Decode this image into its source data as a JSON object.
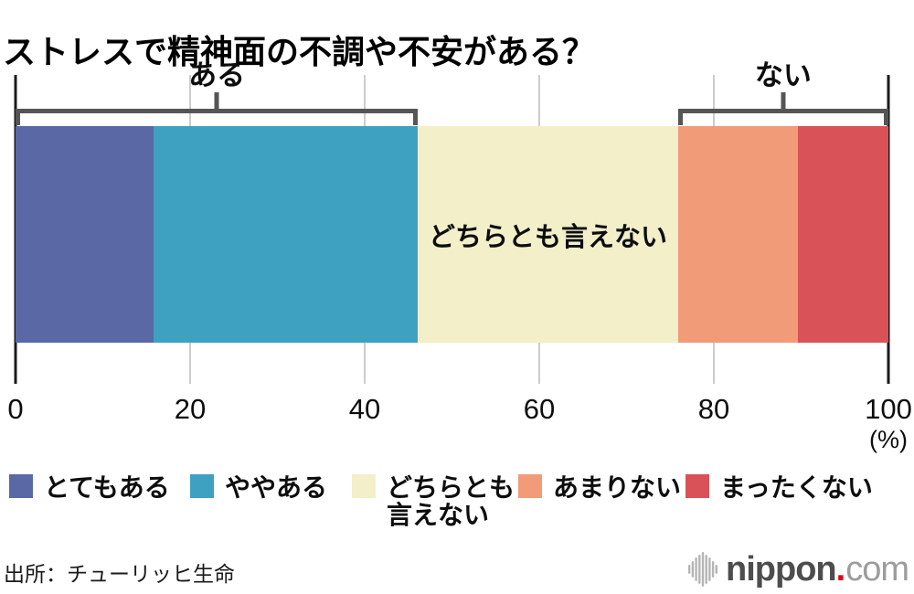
{
  "title": "ストレスで精神面の不調や不安がある？",
  "chart_data": {
    "type": "bar",
    "subtype": "horizontal-stacked-100pct",
    "question": "ストレスで精神面の不調や不安がある？",
    "xlim": [
      0,
      100
    ],
    "x_ticks": [
      0,
      20,
      40,
      60,
      80,
      100
    ],
    "unit": "(%)",
    "grid": "vertical-light-gray",
    "series": [
      {
        "name": "とてもある",
        "value": 15.8,
        "color": "#5a69a5"
      },
      {
        "name": "ややある",
        "value": 30.3,
        "color": "#3fa1c1"
      },
      {
        "name": "どちらとも言えない",
        "value": 29.8,
        "color": "#f2efc9"
      },
      {
        "name": "あまりない",
        "value": 13.7,
        "color": "#f29b79"
      },
      {
        "name": "まったくない",
        "value": 10.4,
        "color": "#d85257"
      }
    ],
    "groups": [
      {
        "label": "ある",
        "members": [
          "とてもある",
          "ややある"
        ],
        "total": 46.1
      },
      {
        "label": "ない",
        "members": [
          "あまりない",
          "まったくない"
        ],
        "total": 24.1
      }
    ],
    "bar_inner_label": "どちらとも言えない",
    "legend_position": "bottom"
  },
  "footer": {
    "source": "出所：チューリッヒ生命"
  },
  "logo": {
    "name": "nippon",
    "dot": ".",
    "tld": "com",
    "dot_color": "#e60012",
    "icon": "soundwave-bars-icon"
  }
}
